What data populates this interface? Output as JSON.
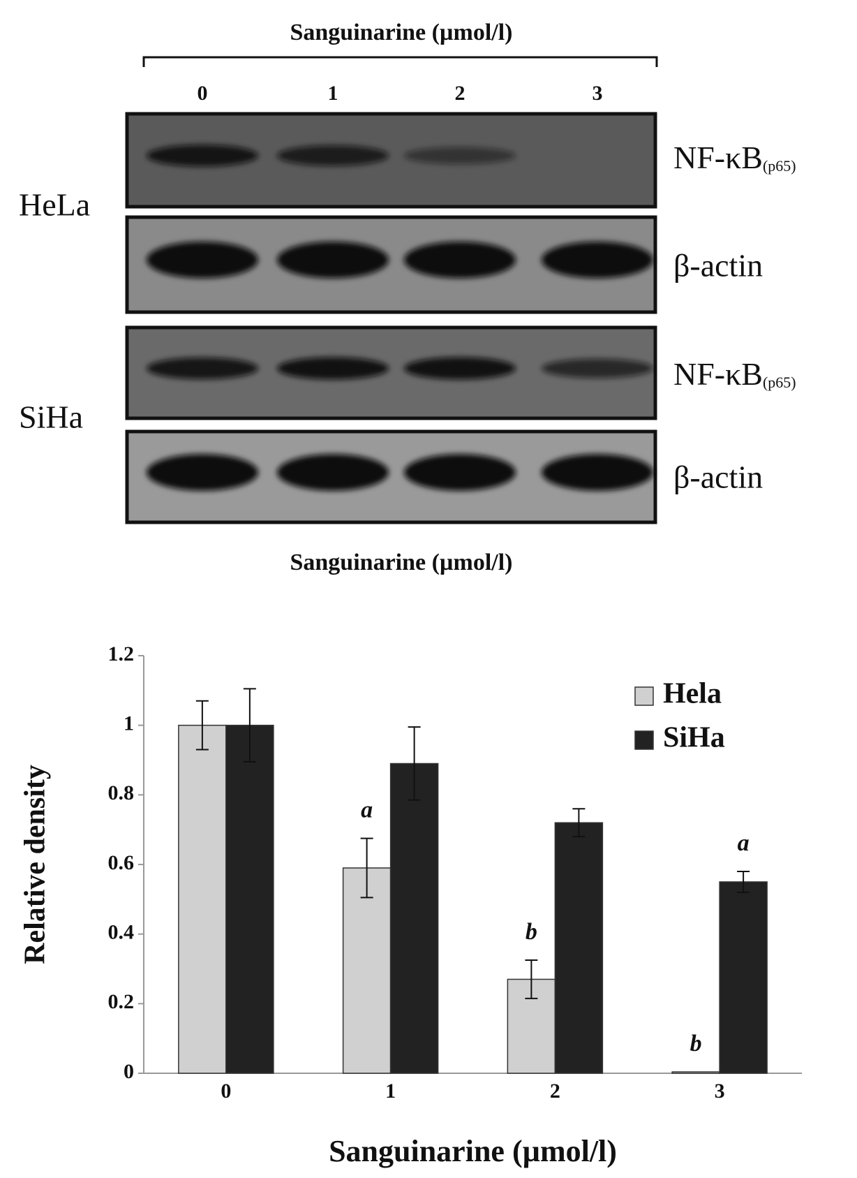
{
  "blot": {
    "title": "Sanguinarine (µmol/l)",
    "lanes": [
      "0",
      "1",
      "2",
      "3"
    ],
    "cell_lines": [
      "HeLa",
      "SiHa"
    ],
    "protein_label": "NF-κB",
    "protein_subscript": "(p65)",
    "control_label": "β-actin",
    "caption": "Sanguinarine (µmol/l)"
  },
  "chart_data": {
    "type": "bar",
    "categories": [
      "0",
      "1",
      "2",
      "3"
    ],
    "series": [
      {
        "name": "Hela",
        "color": "#d0d0d0",
        "values": [
          1,
          0.59,
          0.27,
          0.004
        ],
        "errors": [
          0.07,
          0.085,
          0.055,
          0
        ],
        "annotations": [
          null,
          "a",
          "b",
          "b"
        ]
      },
      {
        "name": "SiHa",
        "color": "#222222",
        "values": [
          1,
          0.89,
          0.72,
          0.55
        ],
        "errors": [
          0.105,
          0.105,
          0.04,
          0.03
        ],
        "annotations": [
          null,
          null,
          null,
          "a"
        ]
      }
    ],
    "ylim": [
      0,
      1.2
    ],
    "yticks": [
      0,
      0.2,
      0.4,
      0.6,
      0.8,
      1,
      1.2
    ],
    "y_label": "Relative density",
    "x_label": "Sanguinarine (µmol/l)",
    "legend": "top-right"
  }
}
